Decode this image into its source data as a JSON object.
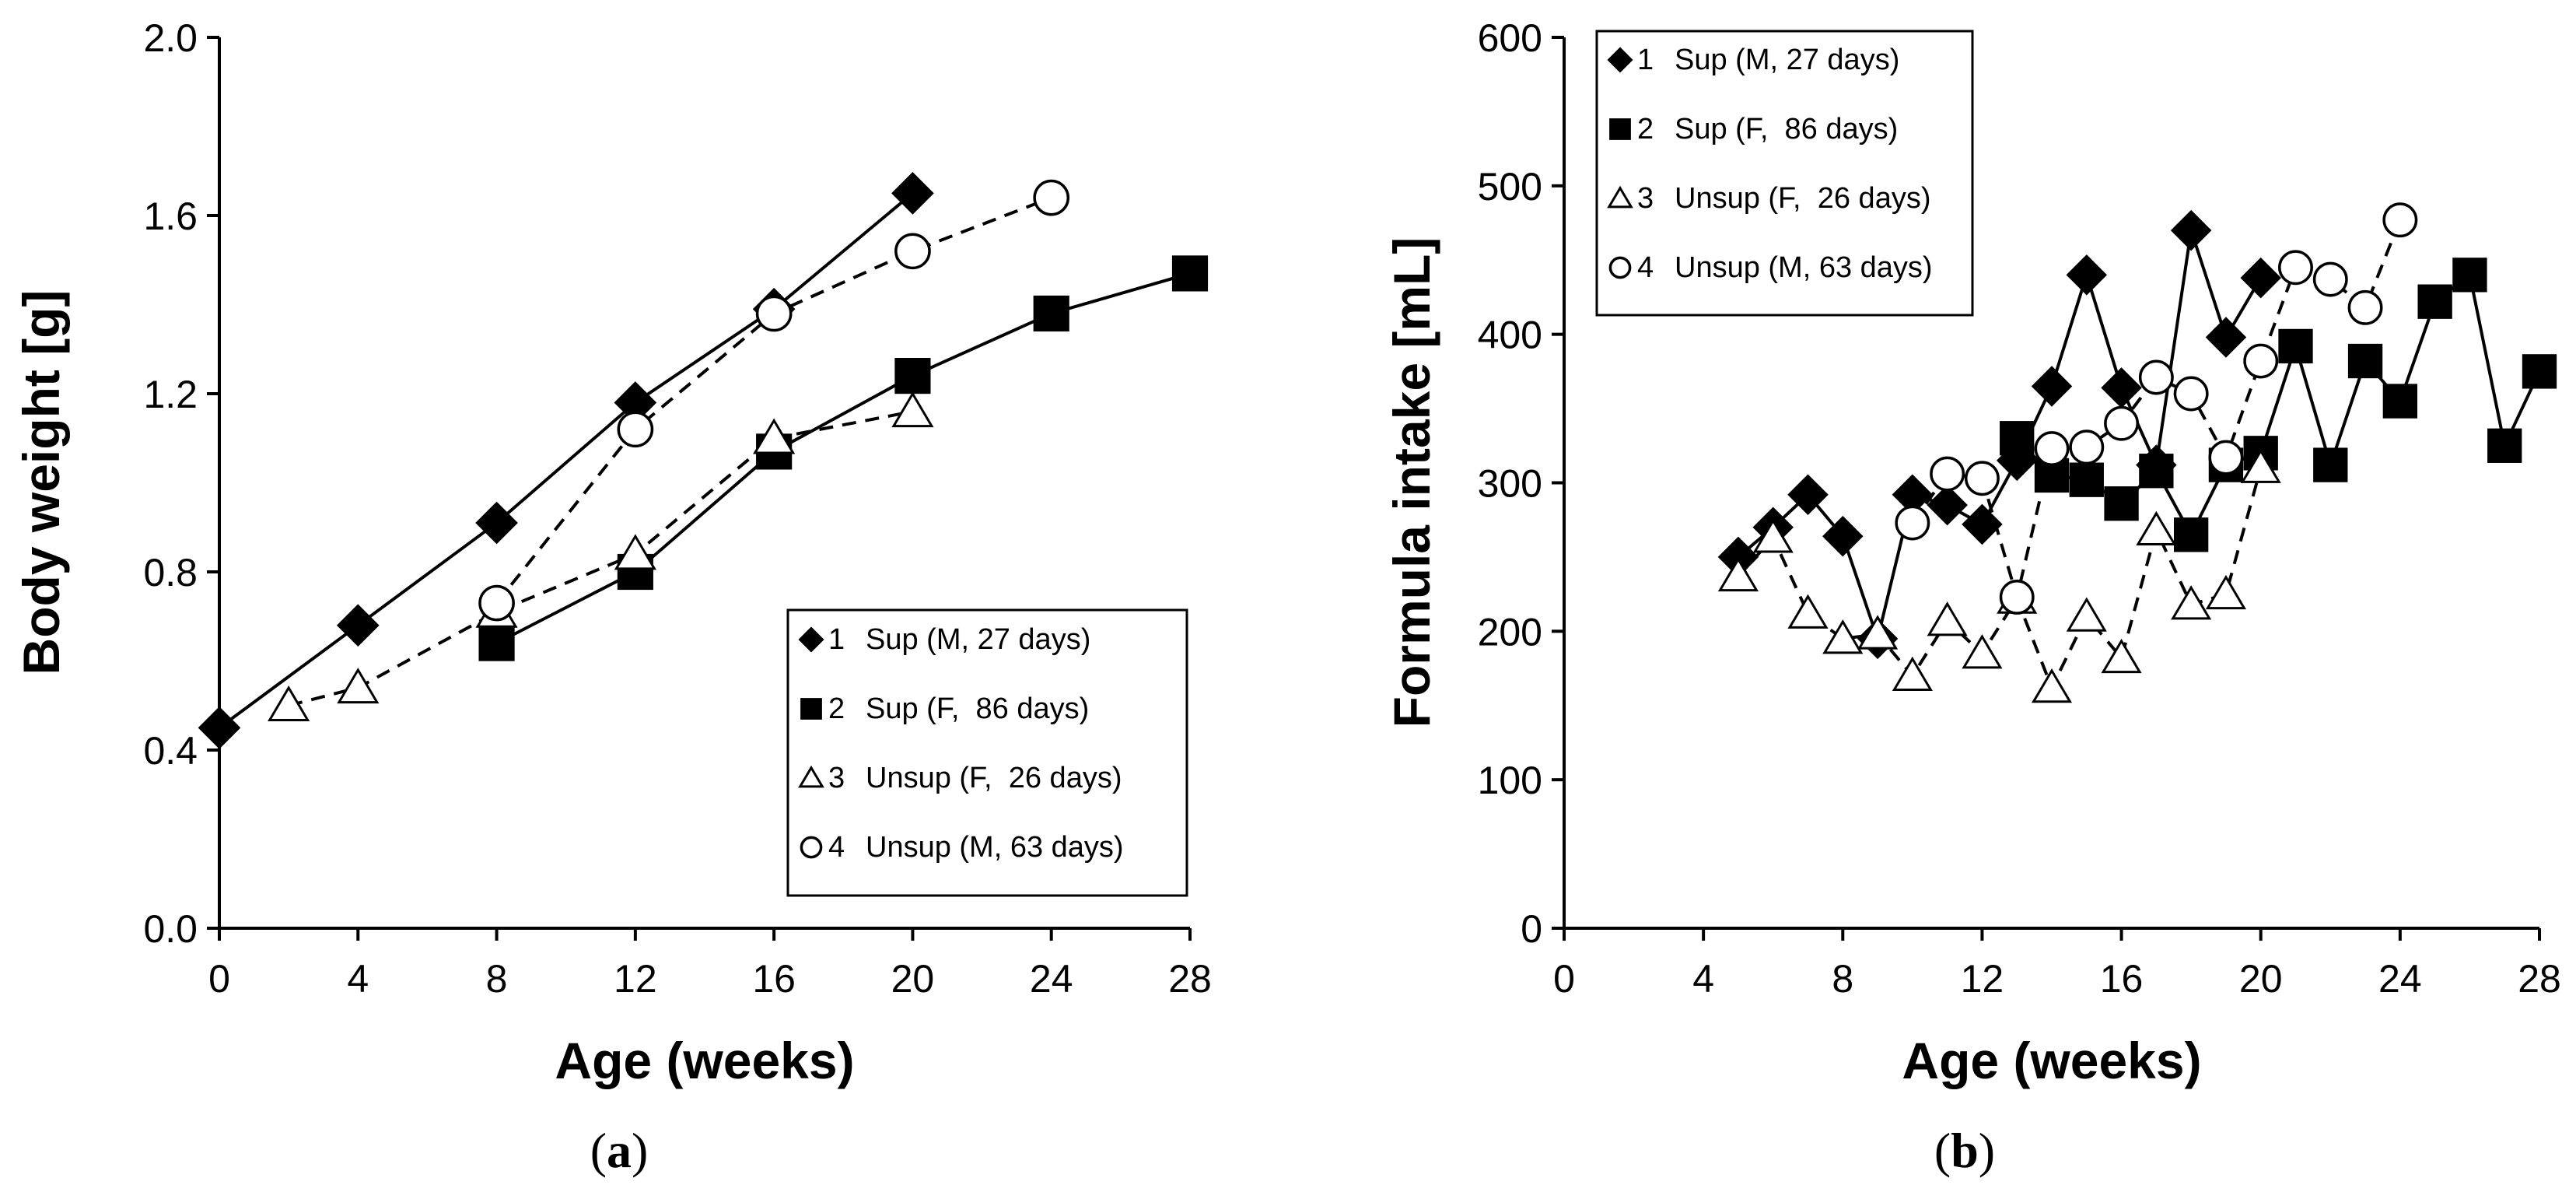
{
  "chart_data": [
    {
      "type": "line",
      "panel_label": "a",
      "xlabel": "Age (weeks)",
      "ylabel": "Body weight [g]",
      "xlim": [
        0,
        28
      ],
      "ylim": [
        0,
        2.0
      ],
      "xticks": [
        "0",
        "4",
        "8",
        "12",
        "16",
        "20",
        "24",
        "28"
      ],
      "yticks": [
        "0.0",
        "0.4",
        "0.8",
        "1.2",
        "1.6",
        "2.0"
      ],
      "legend_position": "bottom-right",
      "series": [
        {
          "name": "1",
          "label": "Sup (M, 27 days)",
          "marker": "diamond-filled",
          "line": "solid",
          "points": [
            [
              0,
              0.45
            ],
            [
              4,
              0.68
            ],
            [
              8,
              0.91
            ],
            [
              12,
              1.18
            ],
            [
              16,
              1.39
            ],
            [
              20,
              1.65
            ]
          ]
        },
        {
          "name": "2",
          "label": "Sup (F,  86 days)",
          "marker": "square-filled",
          "line": "solid",
          "points": [
            [
              8,
              0.64
            ],
            [
              12,
              0.8
            ],
            [
              16,
              1.07
            ],
            [
              20,
              1.24
            ],
            [
              24,
              1.38
            ],
            [
              28,
              1.47
            ]
          ]
        },
        {
          "name": "3",
          "label": "Unsup (F,  26 days)",
          "marker": "triangle-open",
          "line": "dashed",
          "points": [
            [
              2,
              0.5
            ],
            [
              4,
              0.54
            ],
            [
              8,
              0.71
            ],
            [
              12,
              0.84
            ],
            [
              16,
              1.1
            ],
            [
              20,
              1.16
            ]
          ]
        },
        {
          "name": "4",
          "label": "Unsup (M, 63 days)",
          "marker": "circle-open",
          "line": "dashed",
          "points": [
            [
              8,
              0.73
            ],
            [
              12,
              1.12
            ],
            [
              16,
              1.38
            ],
            [
              20,
              1.52
            ],
            [
              24,
              1.64
            ]
          ]
        }
      ]
    },
    {
      "type": "line",
      "panel_label": "b",
      "xlabel": "Age (weeks)",
      "ylabel": "Formula intake [mL]",
      "xlim": [
        0,
        28
      ],
      "ylim": [
        0,
        600
      ],
      "xticks": [
        "0",
        "4",
        "8",
        "12",
        "16",
        "20",
        "24",
        "28"
      ],
      "yticks": [
        "0",
        "100",
        "200",
        "300",
        "400",
        "500",
        "600"
      ],
      "legend_position": "top-left",
      "series": [
        {
          "name": "1",
          "label": "Sup (M, 27 days)",
          "marker": "diamond-filled",
          "line": "solid",
          "points": [
            [
              5,
              250
            ],
            [
              6,
              270
            ],
            [
              7,
              292
            ],
            [
              8,
              264
            ],
            [
              9,
              195
            ],
            [
              10,
              292
            ],
            [
              11,
              285
            ],
            [
              12,
              272
            ],
            [
              13,
              315
            ],
            [
              14,
              365
            ],
            [
              15,
              440
            ],
            [
              16,
              364
            ],
            [
              17,
              312
            ],
            [
              18,
              470
            ],
            [
              19,
              398
            ],
            [
              20,
              438
            ]
          ]
        },
        {
          "name": "2",
          "label": "Sup (F,  86 days)",
          "marker": "square-filled",
          "line": "solid",
          "points": [
            [
              13,
              330
            ],
            [
              14,
              305
            ],
            [
              15,
              302
            ],
            [
              16,
              286
            ],
            [
              17,
              308
            ],
            [
              18,
              265
            ],
            [
              19,
              312
            ],
            [
              20,
              320
            ],
            [
              21,
              392
            ],
            [
              22,
              312
            ],
            [
              23,
              382
            ],
            [
              24,
              355
            ],
            [
              25,
              422
            ],
            [
              26,
              440
            ],
            [
              27,
              325
            ],
            [
              28,
              375
            ]
          ]
        },
        {
          "name": "3",
          "label": "Unsup (F,  26 days)",
          "marker": "triangle-open",
          "line": "dashed",
          "points": [
            [
              5,
              237
            ],
            [
              6,
              263
            ],
            [
              7,
              212
            ],
            [
              8,
              195
            ],
            [
              9,
              198
            ],
            [
              10,
              170
            ],
            [
              11,
              207
            ],
            [
              12,
              185
            ],
            [
              13,
              222
            ],
            [
              14,
              162
            ],
            [
              15,
              210
            ],
            [
              16,
              182
            ],
            [
              17,
              268
            ],
            [
              18,
              218
            ],
            [
              19,
              225
            ],
            [
              20,
              310
            ]
          ]
        },
        {
          "name": "4",
          "label": "Unsup (M, 63 days)",
          "marker": "circle-open",
          "line": "dashed",
          "points": [
            [
              10,
              273
            ],
            [
              11,
              306
            ],
            [
              12,
              303
            ],
            [
              13,
              223
            ],
            [
              14,
              323
            ],
            [
              15,
              324
            ],
            [
              16,
              340
            ],
            [
              17,
              371
            ],
            [
              18,
              360
            ],
            [
              19,
              317
            ],
            [
              20,
              382
            ],
            [
              21,
              445
            ],
            [
              22,
              437
            ],
            [
              23,
              418
            ],
            [
              24,
              477
            ]
          ]
        }
      ]
    }
  ]
}
